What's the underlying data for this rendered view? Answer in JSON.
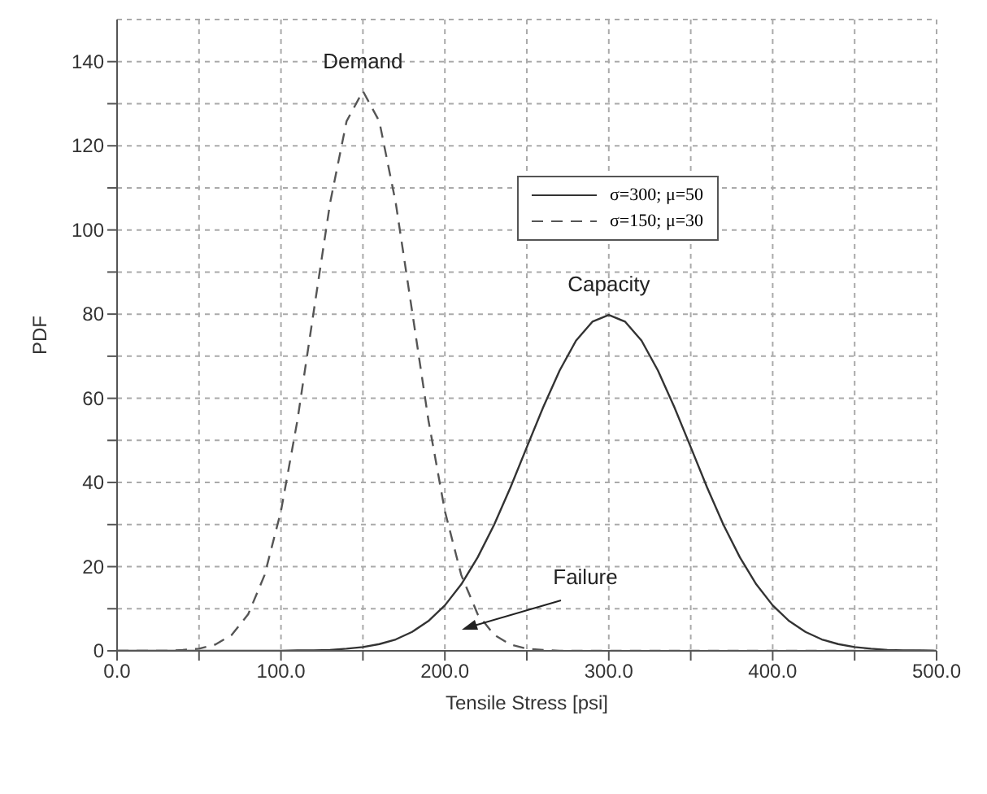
{
  "chart_data": {
    "type": "line",
    "xlabel": "Tensile Stress [psi]",
    "ylabel": "PDF",
    "x": [
      0,
      10,
      20,
      30,
      40,
      50,
      60,
      70,
      80,
      90,
      100,
      110,
      120,
      130,
      140,
      150,
      160,
      170,
      180,
      190,
      200,
      210,
      220,
      230,
      240,
      250,
      260,
      270,
      280,
      290,
      300,
      310,
      320,
      330,
      340,
      350,
      360,
      370,
      380,
      390,
      400,
      410,
      420,
      430,
      440,
      450,
      460,
      470,
      480,
      490,
      500
    ],
    "series": [
      {
        "name": "σ=300; μ=50",
        "color": "#333333",
        "line_style": "solid",
        "values": [
          0,
          0,
          0,
          0,
          0,
          0,
          0,
          0,
          0,
          0,
          0,
          0.1,
          0.1,
          0.2,
          0.5,
          0.9,
          1.6,
          2.7,
          4.5,
          7.1,
          10.8,
          15.8,
          22.2,
          29.9,
          38.8,
          48.4,
          57.9,
          66.6,
          73.7,
          78.2,
          79.8,
          78.2,
          73.7,
          66.6,
          57.9,
          48.4,
          38.8,
          29.9,
          22.2,
          15.8,
          10.8,
          7.1,
          4.5,
          2.7,
          1.6,
          0.9,
          0.5,
          0.2,
          0.1,
          0.1,
          0
        ]
      },
      {
        "name": "σ=150; μ=30",
        "color": "#555555",
        "line_style": "dashed",
        "values": [
          0,
          0,
          0,
          0,
          0.2,
          0.5,
          1.5,
          3.8,
          8.7,
          18.0,
          33.2,
          54.7,
          80.7,
          106.5,
          125.8,
          133.0,
          125.8,
          106.5,
          80.7,
          54.7,
          33.2,
          18.0,
          8.7,
          3.8,
          1.5,
          0.5,
          0.2,
          0,
          0,
          0,
          0,
          0,
          0,
          0,
          0,
          0,
          0,
          0,
          0,
          0,
          0,
          0,
          0,
          0,
          0,
          0,
          0,
          0,
          0,
          0,
          0
        ]
      }
    ],
    "xlim": [
      0,
      500
    ],
    "xticks": [
      {
        "value": 0,
        "label": "0.0"
      },
      {
        "value": 50,
        "label": null
      },
      {
        "value": 100,
        "label": "100.0"
      },
      {
        "value": 150,
        "label": null
      },
      {
        "value": 200,
        "label": "200.0"
      },
      {
        "value": 250,
        "label": null
      },
      {
        "value": 300,
        "label": "300.0"
      },
      {
        "value": 350,
        "label": null
      },
      {
        "value": 400,
        "label": "400.0"
      },
      {
        "value": 450,
        "label": null
      },
      {
        "value": 500,
        "label": "500.0"
      }
    ],
    "ylim": [
      0,
      150
    ],
    "yticks": [
      0,
      {
        "value": 10,
        "label": null
      },
      20,
      {
        "value": 30,
        "label": null
      },
      40,
      {
        "value": 50,
        "label": null
      },
      60,
      {
        "value": 70,
        "label": null
      },
      80,
      {
        "value": 90,
        "label": null
      },
      100,
      {
        "value": 110,
        "label": null
      },
      120,
      {
        "value": 130,
        "label": null
      },
      140
    ],
    "annotations": [
      {
        "text": "Demand",
        "x": 150,
        "y": 133
      },
      {
        "text": "Capacity",
        "x": 300,
        "y": 80
      },
      "Failure"
    ],
    "grid": true,
    "legend": "top right",
    "marker": "none"
  }
}
